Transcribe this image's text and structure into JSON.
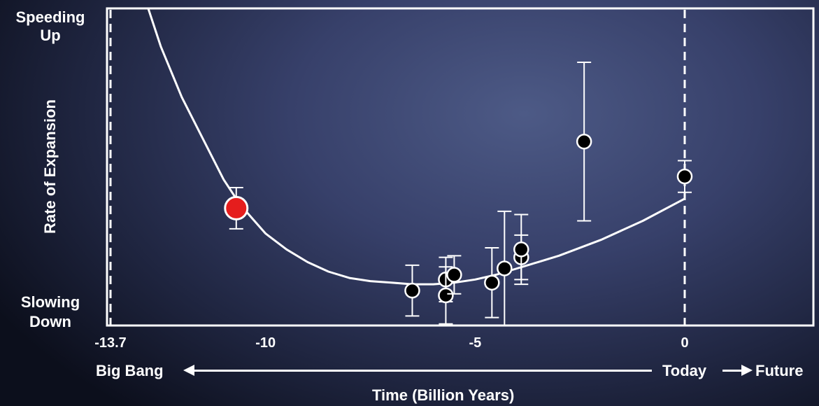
{
  "labels": {
    "y_top": [
      "Speeding",
      "Up"
    ],
    "y_bottom": [
      "Slowing",
      "Down"
    ],
    "y_axis": "Rate of Expansion",
    "x_axis": "Time (Billion Years)",
    "left_note": "Big Bang",
    "right_note_today": "Today",
    "right_note_future": "Future"
  },
  "chart_data": {
    "type": "scatter",
    "title": "",
    "xlabel": "Time (Billion Years)",
    "ylabel": "Rate of Expansion",
    "xlim": [
      -13.7,
      2.7
    ],
    "ylim": [
      0,
      1
    ],
    "x_ticks": [
      {
        "value": -13.7,
        "label": "-13.7"
      },
      {
        "value": -10,
        "label": "-10"
      },
      {
        "value": -5,
        "label": "-5"
      },
      {
        "value": 0,
        "label": "0"
      }
    ],
    "reference_lines": [
      {
        "x": -13.7,
        "style": "dashed"
      },
      {
        "x": 0,
        "style": "dashed"
      }
    ],
    "curve": {
      "x": [
        -12.8,
        -12.5,
        -12.0,
        -11.5,
        -11.0,
        -10.6,
        -10.0,
        -9.5,
        -9.0,
        -8.5,
        -8.0,
        -7.5,
        -7.0,
        -6.5,
        -6.0,
        -5.5,
        -5.0,
        -4.5,
        -4.0,
        -3.5,
        -3.0,
        -2.0,
        -1.0,
        0.0
      ],
      "y": [
        1.0,
        0.88,
        0.72,
        0.59,
        0.46,
        0.38,
        0.29,
        0.24,
        0.2,
        0.17,
        0.15,
        0.14,
        0.135,
        0.13,
        0.13,
        0.135,
        0.145,
        0.16,
        0.18,
        0.2,
        0.22,
        0.27,
        0.33,
        0.4
      ]
    },
    "points": [
      {
        "x": -10.7,
        "y": 0.37,
        "err": 0.065,
        "color": "#e51d1d"
      },
      {
        "x": -6.5,
        "y": 0.11,
        "err": 0.08
      },
      {
        "x": -5.7,
        "y": 0.145,
        "err": 0.07
      },
      {
        "x": -5.7,
        "y": 0.095,
        "err": 0.09
      },
      {
        "x": -5.5,
        "y": 0.16,
        "err": 0.06
      },
      {
        "x": -4.6,
        "y": 0.135,
        "err": 0.11
      },
      {
        "x": -4.3,
        "y": 0.18,
        "err": 0.18
      },
      {
        "x": -3.9,
        "y": 0.215,
        "err": 0.07
      },
      {
        "x": -3.9,
        "y": 0.24,
        "err": 0.11
      },
      {
        "x": -2.4,
        "y": 0.58,
        "err": 0.25
      },
      {
        "x": 0.0,
        "y": 0.47,
        "err": 0.05
      }
    ],
    "grid": false,
    "legend": "none"
  }
}
